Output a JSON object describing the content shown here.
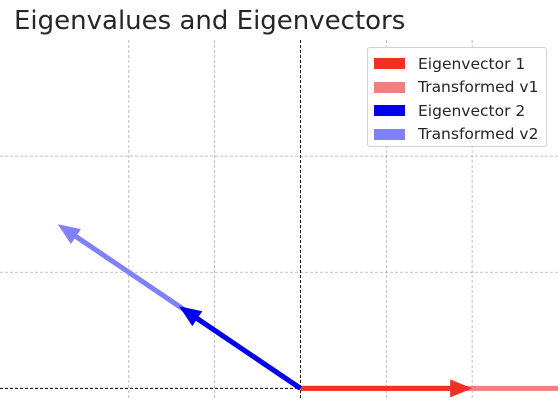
{
  "chart_data": {
    "type": "quiver",
    "title": "Eigenvalues and Eigenvectors",
    "xlabel": "",
    "ylabel": "",
    "xlim": [
      -1.75,
      1.5
    ],
    "ylim": [
      -0.1,
      3.0
    ],
    "grid": true,
    "axis_lines_at_zero": true,
    "legend_placement": "top-right",
    "series": [
      {
        "name": "Eigenvector 1",
        "color": "#ee3124",
        "origin": [
          0,
          0
        ],
        "vector": [
          1,
          0
        ]
      },
      {
        "name": "Transformed v1",
        "color": "#f08080",
        "origin": [
          0,
          0
        ],
        "vector": [
          3,
          0
        ]
      },
      {
        "name": "Eigenvector 2",
        "color": "#0000ee",
        "origin": [
          0,
          0
        ],
        "vector": [
          -0.707,
          0.707
        ]
      },
      {
        "name": "Transformed v2",
        "color": "#8080f8",
        "origin": [
          0,
          0
        ],
        "vector": [
          -1.414,
          1.414
        ]
      }
    ]
  }
}
